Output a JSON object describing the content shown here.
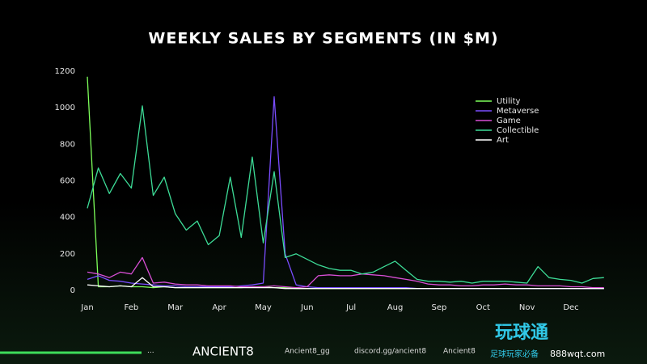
{
  "chart_data": {
    "type": "line",
    "title": "WEEKLY SALES BY SEGMENTS (IN $M)",
    "categories": [
      "Jan",
      null,
      null,
      null,
      "Feb",
      null,
      null,
      null,
      "Mar",
      null,
      null,
      null,
      "Apr",
      null,
      null,
      null,
      "May",
      null,
      null,
      null,
      "Jun",
      null,
      null,
      null,
      "Jul",
      null,
      null,
      null,
      "Aug",
      null,
      null,
      null,
      "Sep",
      null,
      null,
      null,
      "Oct",
      null,
      null,
      null,
      "Nov",
      null,
      null,
      null,
      "Dec",
      null,
      null,
      null
    ],
    "series": [
      {
        "name": "Utility",
        "color": "#7dff5a",
        "values": [
          1170,
          20,
          20,
          25,
          20,
          20,
          15,
          20,
          15,
          15,
          15,
          15,
          15,
          15,
          15,
          20,
          20,
          15,
          15,
          10,
          10,
          10,
          10,
          10,
          10,
          10,
          10,
          10,
          10,
          10,
          10,
          10,
          10,
          10,
          10,
          10,
          10,
          10,
          10,
          10,
          10,
          10,
          10,
          10,
          10,
          10,
          10,
          10
        ]
      },
      {
        "name": "Metaverse",
        "color": "#7a4dff",
        "values": [
          60,
          80,
          55,
          50,
          40,
          35,
          30,
          25,
          25,
          20,
          20,
          20,
          20,
          20,
          25,
          30,
          40,
          1060,
          200,
          30,
          20,
          15,
          15,
          15,
          15,
          15,
          15,
          15,
          15,
          15,
          10,
          10,
          10,
          10,
          10,
          10,
          10,
          10,
          10,
          10,
          10,
          10,
          10,
          10,
          10,
          10,
          10,
          10
        ]
      },
      {
        "name": "Game",
        "color": "#d94fd6",
        "values": [
          100,
          90,
          70,
          100,
          90,
          180,
          40,
          45,
          35,
          30,
          30,
          25,
          25,
          25,
          20,
          20,
          20,
          25,
          20,
          15,
          20,
          80,
          85,
          80,
          80,
          90,
          85,
          80,
          70,
          60,
          50,
          35,
          30,
          30,
          25,
          25,
          30,
          30,
          35,
          30,
          30,
          25,
          25,
          25,
          20,
          20,
          15,
          15
        ]
      },
      {
        "name": "Collectible",
        "color": "#3ddc97",
        "values": [
          450,
          670,
          530,
          640,
          560,
          1010,
          520,
          620,
          420,
          330,
          380,
          250,
          300,
          620,
          290,
          730,
          260,
          650,
          180,
          200,
          170,
          140,
          120,
          110,
          110,
          90,
          100,
          130,
          160,
          110,
          60,
          50,
          50,
          45,
          50,
          40,
          50,
          50,
          50,
          45,
          40,
          130,
          70,
          60,
          55,
          40,
          65,
          70
        ]
      },
      {
        "name": "Art",
        "color": "#ffffff",
        "values": [
          30,
          25,
          20,
          25,
          20,
          70,
          20,
          20,
          15,
          15,
          15,
          15,
          15,
          15,
          15,
          15,
          15,
          15,
          10,
          10,
          10,
          10,
          10,
          10,
          10,
          10,
          10,
          10,
          10,
          10,
          10,
          10,
          10,
          10,
          10,
          10,
          10,
          10,
          10,
          10,
          10,
          10,
          10,
          10,
          10,
          10,
          10,
          10
        ]
      }
    ],
    "ylim": [
      0,
      1200
    ],
    "yticks": [
      0,
      200,
      400,
      600,
      800,
      1000,
      1200
    ],
    "grid": false,
    "legend": "top-right"
  },
  "footer": {
    "brand": "ANCIENT8",
    "twitter": "Ancient8_gg",
    "discord": "discord.gg/ancient8",
    "web": "Ancient8",
    "watermark": {
      "name": "玩球通",
      "tagline": "足球玩家必备",
      "url": "888wqt.com"
    }
  }
}
